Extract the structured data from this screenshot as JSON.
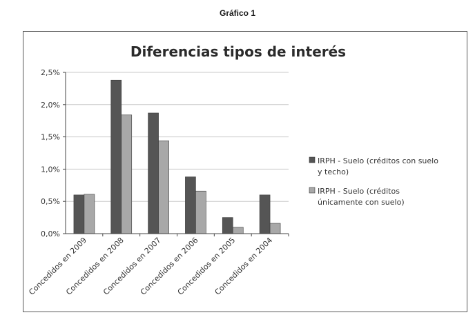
{
  "caption": "Gráfico 1",
  "colors": {
    "series1": "#555555",
    "series2": "#a8a8a8",
    "grid": "#c8c8c8",
    "axis": "#444444"
  },
  "chart_data": {
    "type": "bar",
    "title": "Diferencias tipos de interés",
    "xlabel": "",
    "ylabel": "",
    "categories": [
      "Concedidos en 2009",
      "Concedidos en 2008",
      "Concedidos en 2007",
      "Concedidos en 2006",
      "Concedidos en 2005",
      "Concedidos en 2004"
    ],
    "series": [
      {
        "name": "IRPH - Suelo (créditos con suelo y techo)",
        "legend_lines": [
          "IRPH - Suelo (créditos con suelo",
          "y techo)"
        ],
        "values": [
          0.6,
          2.38,
          1.87,
          0.88,
          0.25,
          0.6
        ]
      },
      {
        "name": "IRPH - Suelo (créditos únicamente con suelo)",
        "legend_lines": [
          "IRPH - Suelo (créditos",
          "únicamente con suelo)"
        ],
        "values": [
          0.61,
          1.84,
          1.44,
          0.66,
          0.1,
          0.16
        ]
      }
    ],
    "ylim": [
      0,
      2.5
    ],
    "yticks": [
      0,
      0.5,
      1.0,
      1.5,
      2.0,
      2.5
    ],
    "ytick_labels": [
      "0,0%",
      "0,5%",
      "1,0%",
      "1,5%",
      "2,0%",
      "2,5%"
    ],
    "grid": true,
    "legend_position": "right"
  }
}
